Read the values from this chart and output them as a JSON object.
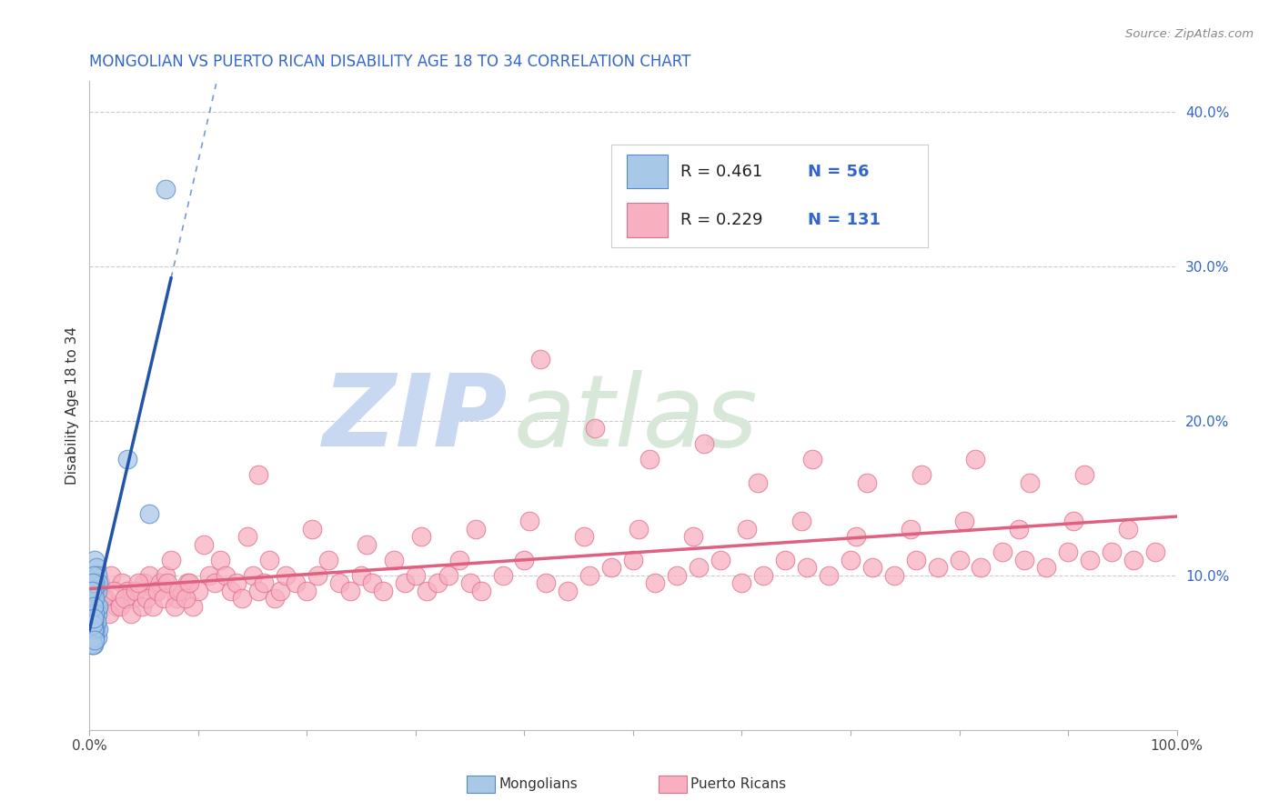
{
  "title": "MONGOLIAN VS PUERTO RICAN DISABILITY AGE 18 TO 34 CORRELATION CHART",
  "source_text": "Source: ZipAtlas.com",
  "ylabel": "Disability Age 18 to 34",
  "xlim": [
    0.0,
    1.0
  ],
  "ylim": [
    0.0,
    0.42
  ],
  "x_ticks": [
    0.0,
    0.1,
    0.2,
    0.3,
    0.4,
    0.5,
    0.6,
    0.7,
    0.8,
    0.9,
    1.0
  ],
  "x_tick_labels": [
    "0.0%",
    "",
    "",
    "",
    "",
    "",
    "",
    "",
    "",
    "",
    "100.0%"
  ],
  "y_ticks_right": [
    0.0,
    0.1,
    0.2,
    0.3,
    0.4
  ],
  "y_tick_labels_right": [
    "",
    "10.0%",
    "20.0%",
    "30.0%",
    "40.0%"
  ],
  "legend_r_mongolian": "R = 0.461",
  "legend_n_mongolian": "N = 56",
  "legend_r_puerto_rican": "R = 0.229",
  "legend_n_puerto_rican": "N = 131",
  "mongolian_color": "#a8c8e8",
  "mongolian_edge_color": "#5588cc",
  "mongolian_line_color": "#2255aa",
  "puerto_rican_color": "#f8b0c0",
  "puerto_rican_edge_color": "#e07090",
  "puerto_rican_line_color": "#e06080",
  "background_color": "#ffffff",
  "grid_color": "#cccccc",
  "title_color": "#3366cc",
  "source_color": "#888888",
  "ylabel_color": "#333333",
  "tick_label_color_blue": "#3366cc",
  "tick_label_color_dark": "#444444",
  "watermark_zip_color": "#c8d8f0",
  "watermark_atlas_color": "#d8e8d8",
  "mongolian_scatter_x": [
    0.001,
    0.001,
    0.002,
    0.002,
    0.003,
    0.003,
    0.003,
    0.004,
    0.004,
    0.004,
    0.004,
    0.005,
    0.005,
    0.005,
    0.005,
    0.005,
    0.006,
    0.006,
    0.006,
    0.006,
    0.007,
    0.007,
    0.007,
    0.007,
    0.008,
    0.008,
    0.008,
    0.003,
    0.004,
    0.005,
    0.002,
    0.003,
    0.004,
    0.005,
    0.006,
    0.003,
    0.004,
    0.005,
    0.003,
    0.004,
    0.002,
    0.003,
    0.004,
    0.005,
    0.003,
    0.004,
    0.005,
    0.003,
    0.002,
    0.004,
    0.003,
    0.004,
    0.005,
    0.035,
    0.055,
    0.07
  ],
  "mongolian_scatter_y": [
    0.065,
    0.08,
    0.055,
    0.095,
    0.06,
    0.075,
    0.09,
    0.055,
    0.07,
    0.085,
    0.1,
    0.06,
    0.075,
    0.09,
    0.1,
    0.11,
    0.065,
    0.08,
    0.095,
    0.105,
    0.06,
    0.075,
    0.09,
    0.1,
    0.065,
    0.08,
    0.095,
    0.065,
    0.08,
    0.06,
    0.075,
    0.07,
    0.085,
    0.095,
    0.07,
    0.085,
    0.1,
    0.065,
    0.075,
    0.09,
    0.06,
    0.08,
    0.07,
    0.085,
    0.095,
    0.065,
    0.075,
    0.055,
    0.09,
    0.08,
    0.068,
    0.072,
    0.058,
    0.175,
    0.14,
    0.35
  ],
  "puerto_rican_scatter_x": [
    0.005,
    0.01,
    0.015,
    0.02,
    0.025,
    0.03,
    0.035,
    0.04,
    0.05,
    0.055,
    0.06,
    0.065,
    0.07,
    0.075,
    0.08,
    0.085,
    0.09,
    0.095,
    0.1,
    0.11,
    0.115,
    0.12,
    0.125,
    0.13,
    0.135,
    0.14,
    0.15,
    0.155,
    0.16,
    0.165,
    0.17,
    0.175,
    0.18,
    0.19,
    0.2,
    0.21,
    0.22,
    0.23,
    0.24,
    0.25,
    0.26,
    0.27,
    0.28,
    0.29,
    0.3,
    0.31,
    0.32,
    0.33,
    0.34,
    0.35,
    0.36,
    0.38,
    0.4,
    0.42,
    0.44,
    0.46,
    0.48,
    0.5,
    0.52,
    0.54,
    0.56,
    0.58,
    0.6,
    0.62,
    0.64,
    0.66,
    0.68,
    0.7,
    0.72,
    0.74,
    0.76,
    0.78,
    0.8,
    0.82,
    0.84,
    0.86,
    0.88,
    0.9,
    0.92,
    0.94,
    0.96,
    0.98,
    0.008,
    0.012,
    0.018,
    0.022,
    0.028,
    0.032,
    0.038,
    0.042,
    0.048,
    0.052,
    0.058,
    0.062,
    0.068,
    0.072,
    0.078,
    0.082,
    0.088,
    0.092,
    0.105,
    0.145,
    0.205,
    0.255,
    0.305,
    0.355,
    0.405,
    0.455,
    0.505,
    0.555,
    0.605,
    0.655,
    0.705,
    0.755,
    0.805,
    0.855,
    0.905,
    0.955,
    0.045,
    0.155,
    0.415,
    0.465,
    0.515,
    0.565,
    0.615,
    0.665,
    0.715,
    0.765,
    0.815,
    0.865,
    0.915
  ],
  "puerto_rican_scatter_y": [
    0.09,
    0.095,
    0.085,
    0.1,
    0.08,
    0.095,
    0.09,
    0.085,
    0.095,
    0.1,
    0.09,
    0.095,
    0.1,
    0.11,
    0.085,
    0.09,
    0.095,
    0.08,
    0.09,
    0.1,
    0.095,
    0.11,
    0.1,
    0.09,
    0.095,
    0.085,
    0.1,
    0.09,
    0.095,
    0.11,
    0.085,
    0.09,
    0.1,
    0.095,
    0.09,
    0.1,
    0.11,
    0.095,
    0.09,
    0.1,
    0.095,
    0.09,
    0.11,
    0.095,
    0.1,
    0.09,
    0.095,
    0.1,
    0.11,
    0.095,
    0.09,
    0.1,
    0.11,
    0.095,
    0.09,
    0.1,
    0.105,
    0.11,
    0.095,
    0.1,
    0.105,
    0.11,
    0.095,
    0.1,
    0.11,
    0.105,
    0.1,
    0.11,
    0.105,
    0.1,
    0.11,
    0.105,
    0.11,
    0.105,
    0.115,
    0.11,
    0.105,
    0.115,
    0.11,
    0.115,
    0.11,
    0.115,
    0.08,
    0.085,
    0.075,
    0.09,
    0.08,
    0.085,
    0.075,
    0.09,
    0.08,
    0.085,
    0.08,
    0.09,
    0.085,
    0.095,
    0.08,
    0.09,
    0.085,
    0.095,
    0.12,
    0.125,
    0.13,
    0.12,
    0.125,
    0.13,
    0.135,
    0.125,
    0.13,
    0.125,
    0.13,
    0.135,
    0.125,
    0.13,
    0.135,
    0.13,
    0.135,
    0.13,
    0.095,
    0.165,
    0.24,
    0.195,
    0.175,
    0.185,
    0.16,
    0.175,
    0.16,
    0.165,
    0.175,
    0.16,
    0.165
  ]
}
